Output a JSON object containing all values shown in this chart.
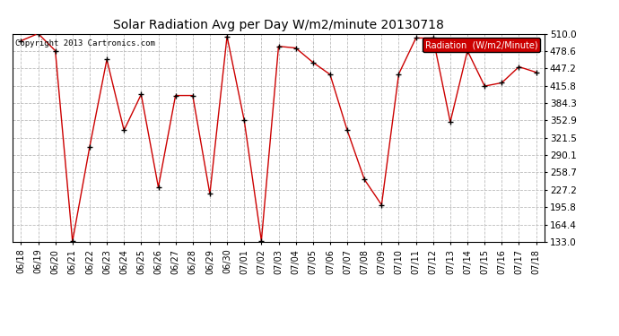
{
  "title": "Solar Radiation Avg per Day W/m2/minute 20130718",
  "copyright": "Copyright 2013 Cartronics.com",
  "legend_label": "Radiation  (W/m2/Minute)",
  "legend_bg": "#cc0000",
  "legend_text_color": "#ffffff",
  "background_color": "#ffffff",
  "plot_bg": "#ffffff",
  "line_color": "#cc0000",
  "marker_color": "#000000",
  "grid_color": "#bbbbbb",
  "ylim": [
    133.0,
    510.0
  ],
  "yticks": [
    133.0,
    164.4,
    195.8,
    227.2,
    258.7,
    290.1,
    321.5,
    352.9,
    384.3,
    415.8,
    447.2,
    478.6,
    510.0
  ],
  "dates": [
    "06/18",
    "06/19",
    "06/20",
    "06/21",
    "06/22",
    "06/23",
    "06/24",
    "06/25",
    "06/26",
    "06/27",
    "06/28",
    "06/29",
    "06/30",
    "07/01",
    "07/02",
    "07/03",
    "07/04",
    "07/05",
    "07/06",
    "07/07",
    "07/08",
    "07/09",
    "07/10",
    "07/11",
    "07/12",
    "07/13",
    "07/14",
    "07/15",
    "07/16",
    "07/17",
    "07/18"
  ],
  "values": [
    497.0,
    510.0,
    479.0,
    134.0,
    305.0,
    463.0,
    335.0,
    400.0,
    232.0,
    398.0,
    398.0,
    220.0,
    505.0,
    353.0,
    135.0,
    487.0,
    484.0,
    458.0,
    436.0,
    335.0,
    246.0,
    200.0,
    437.0,
    502.0,
    502.0,
    350.0,
    479.0,
    415.0,
    421.0,
    450.0,
    440.0
  ]
}
